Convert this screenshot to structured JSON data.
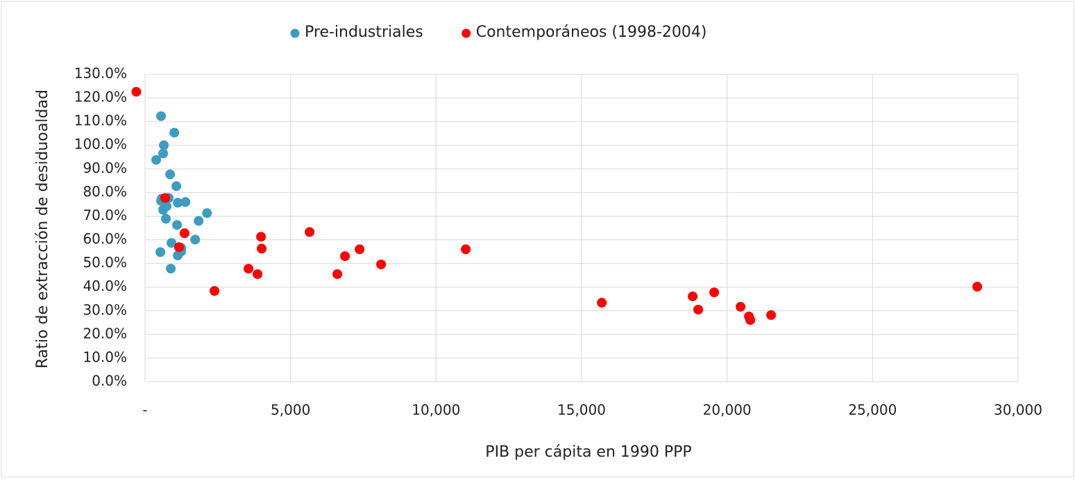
{
  "chart_data": {
    "type": "scatter",
    "xlabel": "PIB per cápita en 1990 PPP",
    "ylabel": "Ratio de extracción de desiduoaldad",
    "xlim": [
      0,
      30000
    ],
    "xticks": [
      {
        "value": 0,
        "label": "-"
      },
      {
        "value": 5000,
        "label": "5,000"
      },
      {
        "value": 10000,
        "label": "10,000"
      },
      {
        "value": 15000,
        "label": "15,000"
      },
      {
        "value": 20000,
        "label": "20,000"
      },
      {
        "value": 25000,
        "label": "25,000"
      },
      {
        "value": 30000,
        "label": "30,000"
      }
    ],
    "ylim": [
      0,
      130
    ],
    "yticks": [
      {
        "value": 0,
        "label": "0.0%"
      },
      {
        "value": 10,
        "label": "10.0%"
      },
      {
        "value": 20,
        "label": "20.0%"
      },
      {
        "value": 30,
        "label": "30.0%"
      },
      {
        "value": 40,
        "label": "40.0%"
      },
      {
        "value": 50,
        "label": "50.0%"
      },
      {
        "value": 60,
        "label": "60.0%"
      },
      {
        "value": 70,
        "label": "70.0%"
      },
      {
        "value": 80,
        "label": "80.0%"
      },
      {
        "value": 90,
        "label": "90.0%"
      },
      {
        "value": 100,
        "label": "100.0%"
      },
      {
        "value": 110,
        "label": "110.0%"
      },
      {
        "value": 120,
        "label": "120.0%"
      },
      {
        "value": 130,
        "label": "130.0%"
      }
    ],
    "grid": true,
    "legend": "top",
    "series": [
      {
        "name": "Pre-industriales",
        "color": "#3d9cc1",
        "x": [
          550,
          1005,
          646,
          622,
          383,
          861,
          1077,
          574,
          813,
          550,
          1124,
          1388,
          742,
          622,
          2129,
          1842,
          718,
          1100,
          1722,
          909,
          1244,
          1244,
          526,
          1124,
          885
        ],
        "values": [
          112.3,
          105.3,
          100,
          96.5,
          93.8,
          87.7,
          82.7,
          77.4,
          77.7,
          76.5,
          75.7,
          76.0,
          74.2,
          72.7,
          71.3,
          68.0,
          68.9,
          66.3,
          60.1,
          58.7,
          56.6,
          55.1,
          54.8,
          53.4,
          47.8
        ]
      },
      {
        "name": "Contemporáneos (1998-2004)",
        "color": "#ff0000",
        "x": [
          -300,
          690,
          1358,
          1167,
          2386,
          3555,
          3865,
          3985,
          4008,
          5654,
          6608,
          6870,
          7371,
          8110,
          11020,
          15694,
          18818,
          19008,
          19557,
          20463,
          20750,
          20797,
          21512,
          28596
        ],
        "values": [
          122.6,
          77.7,
          62.8,
          56.9,
          38.4,
          47.8,
          45.5,
          61.3,
          56.3,
          63.3,
          45.5,
          53.1,
          56.0,
          49.6,
          56.0,
          33.4,
          36.1,
          30.5,
          37.8,
          31.7,
          27.6,
          26.1,
          28.2,
          40.2
        ]
      }
    ]
  }
}
